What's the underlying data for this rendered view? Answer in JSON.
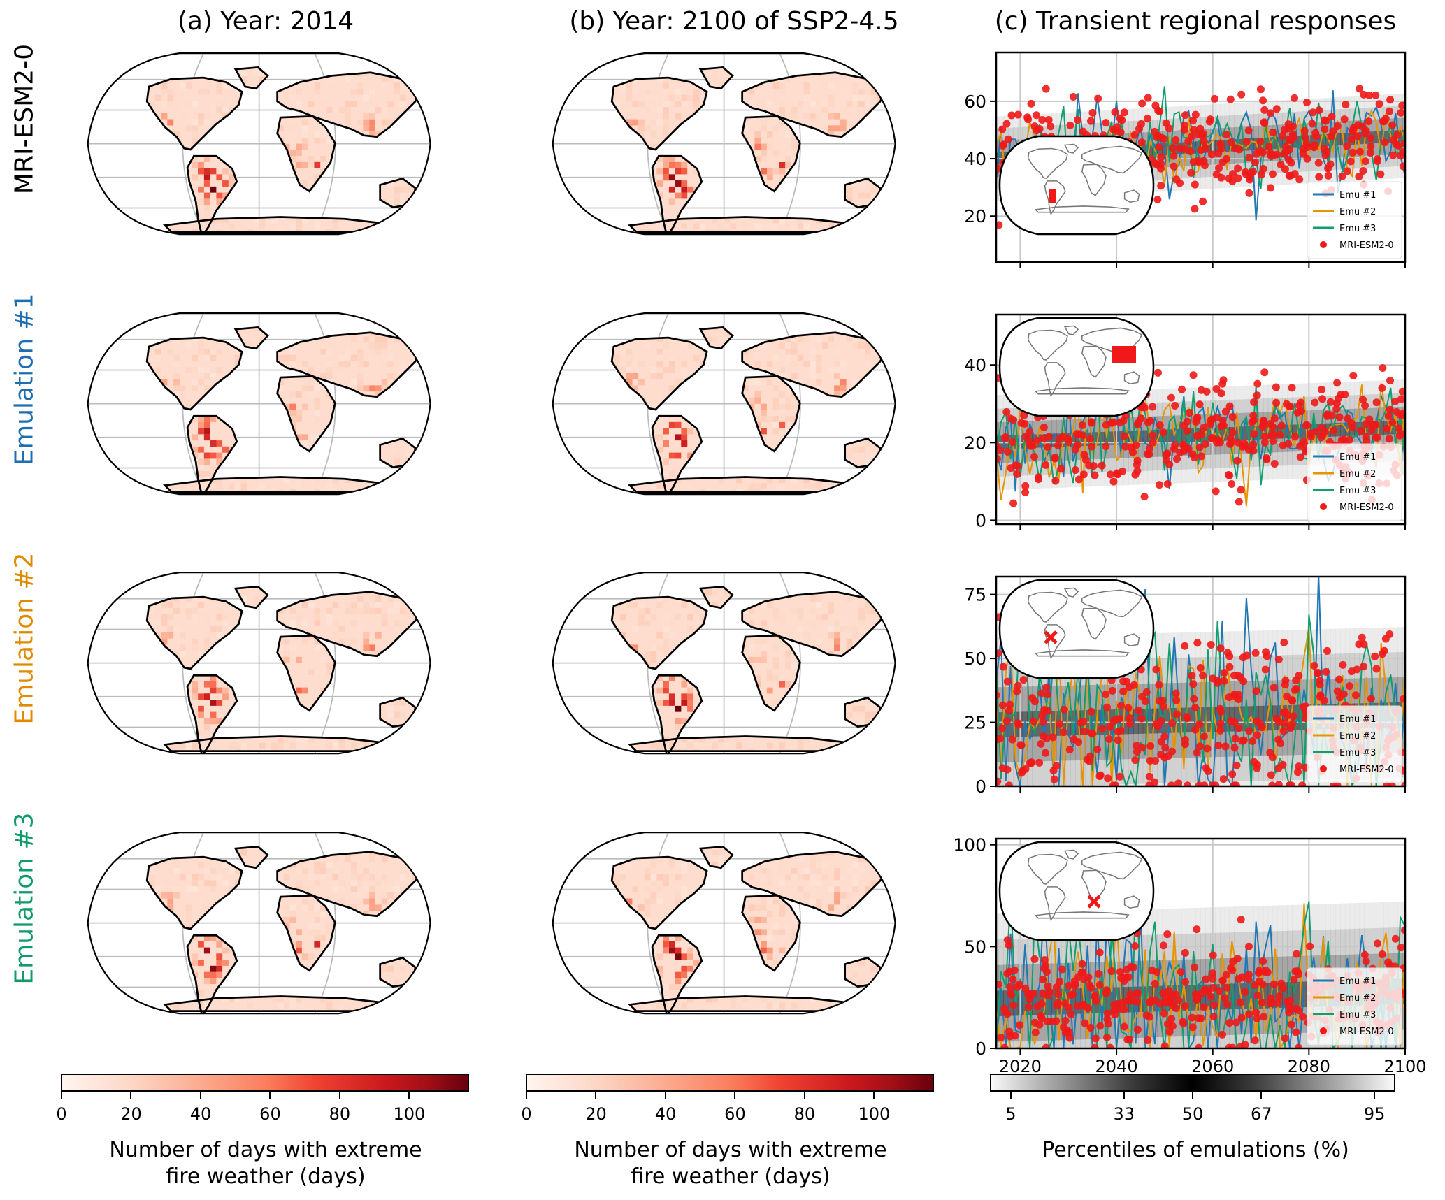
{
  "columns": [
    {
      "title": "(a) Year: 2014"
    },
    {
      "title": "(b) Year: 2100 of SSP2-4.5"
    },
    {
      "title": "(c) Transient regional responses"
    }
  ],
  "rows": [
    {
      "label": "MRI-ESM2-0",
      "color": "#000000"
    },
    {
      "label": "Emulation #1",
      "color": "#1f6fb0"
    },
    {
      "label": "Emulation #2",
      "color": "#e08a00"
    },
    {
      "label": "Emulation #3",
      "color": "#119a6a"
    }
  ],
  "colorbar_fire": {
    "label_line1": "Number of days with extreme",
    "label_line2": "fire weather (days)",
    "ticks": [
      "0",
      "20",
      "40",
      "60",
      "80",
      "100"
    ],
    "range": [
      0,
      117
    ],
    "colormap": "Reds"
  },
  "colorbar_percentile": {
    "label": "Percentiles of emulations (%)",
    "ticks": [
      "5",
      "33",
      "50",
      "67",
      "95"
    ],
    "colormap": "gray (white at extremes, black at median)"
  },
  "chart_data": [
    {
      "type": "line",
      "panel": "c-row1",
      "region": "Western South America (west coast)",
      "x_range": [
        2015,
        2100
      ],
      "x_ticks": [
        "2020",
        "2040",
        "2060",
        "2080",
        "2100"
      ],
      "ylim": [
        4,
        77
      ],
      "y_ticks": [
        "20",
        "40",
        "60"
      ],
      "median_trend": [
        40,
        48
      ],
      "spread": 6,
      "model_spread": 9,
      "legend": [
        "Emu #1",
        "Emu #2",
        "Emu #3",
        "MRI-ESM2-0"
      ],
      "legend_position": "lower-right",
      "inset_position": "lower-left",
      "grid": true
    },
    {
      "type": "line",
      "panel": "c-row2",
      "region": "South/Southeast Asia",
      "x_range": [
        2015,
        2100
      ],
      "x_ticks": [
        "2020",
        "2040",
        "2060",
        "2080",
        "2100"
      ],
      "ylim": [
        -1,
        53
      ],
      "y_ticks": [
        "0",
        "20",
        "40"
      ],
      "median_trend": [
        20,
        24
      ],
      "spread": 5,
      "model_spread": 7,
      "legend": [
        "Emu #1",
        "Emu #2",
        "Emu #3",
        "MRI-ESM2-0"
      ],
      "legend_position": "lower-right",
      "inset_position": "upper-left",
      "grid": true
    },
    {
      "type": "line",
      "panel": "c-row3",
      "region": "Northern South America (marked X)",
      "x_range": [
        2015,
        2100
      ],
      "x_ticks": [
        "2020",
        "2040",
        "2060",
        "2080",
        "2100"
      ],
      "ylim": [
        0,
        82
      ],
      "y_ticks": [
        "0",
        "25",
        "50",
        "75"
      ],
      "median_trend": [
        24,
        28
      ],
      "spread": 14,
      "model_spread": 17,
      "legend": [
        "Emu #1",
        "Emu #2",
        "Emu #3",
        "MRI-ESM2-0"
      ],
      "legend_position": "lower-right",
      "inset_position": "upper-left",
      "grid": true
    },
    {
      "type": "line",
      "panel": "c-row4",
      "region": "Central Africa (marked X)",
      "x_range": [
        2015,
        2100
      ],
      "x_ticks": [
        "2020",
        "2040",
        "2060",
        "2080",
        "2100"
      ],
      "ylim": [
        0,
        103
      ],
      "y_ticks": [
        "0",
        "50",
        "100"
      ],
      "median_trend": [
        22,
        28
      ],
      "spread": 18,
      "model_spread": 12,
      "legend": [
        "Emu #1",
        "Emu #2",
        "Emu #3",
        "MRI-ESM2-0"
      ],
      "legend_position": "lower-right",
      "inset_position": "upper-left",
      "grid": true
    }
  ],
  "series_colors": {
    "emu1": "#1f77b4",
    "emu2": "#e69500",
    "emu3": "#109e6e",
    "model": "#f01818"
  }
}
